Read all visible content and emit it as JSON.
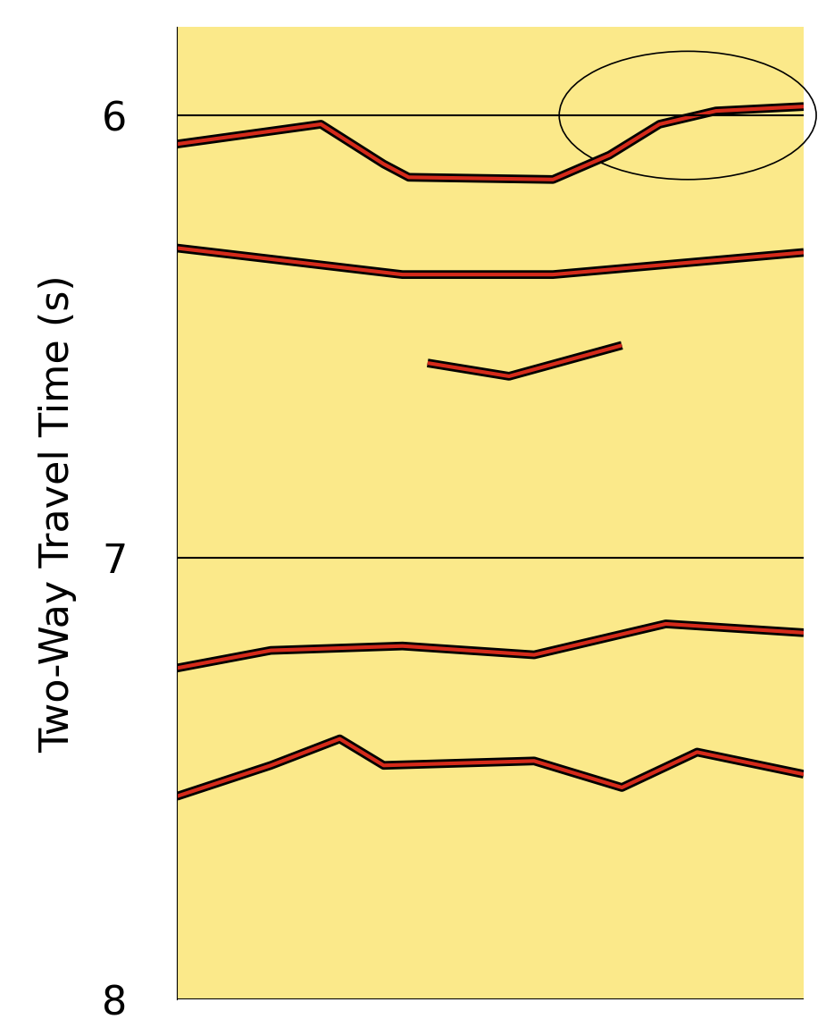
{
  "chart_data": {
    "type": "seismic_section",
    "y_label": "Two-Way Travel Time (s)",
    "ylim": [
      8,
      5.8
    ],
    "yticks": [
      6,
      7,
      8
    ],
    "xlim": [
      0,
      100
    ],
    "grid": true,
    "tick_labels": "y",
    "series": [
      {
        "color": "#d42a1a",
        "x": [
          0,
          23,
          33,
          37,
          60,
          69,
          77,
          86,
          100
        ],
        "values": [
          6.065,
          6.02,
          6.11,
          6.14,
          6.145,
          6.09,
          6.02,
          5.99,
          5.98
        ]
      },
      {
        "color": "#d42a1a",
        "x": [
          0,
          36,
          60,
          100
        ],
        "values": [
          6.3,
          6.36,
          6.36,
          6.31
        ]
      },
      {
        "color": "#d42a1a",
        "x": [
          40,
          53,
          71
        ],
        "values": [
          6.56,
          6.59,
          6.52
        ]
      },
      {
        "color": "#d42a1a",
        "x": [
          0,
          15,
          36,
          57,
          78,
          100
        ],
        "values": [
          7.25,
          7.21,
          7.2,
          7.22,
          7.15,
          7.17
        ]
      },
      {
        "color": "#d42a1a",
        "x": [
          0,
          15,
          26,
          33,
          57,
          71,
          83,
          100
        ],
        "values": [
          7.54,
          7.47,
          7.41,
          7.47,
          7.46,
          7.52,
          7.44,
          7.49
        ]
      }
    ]
  }
}
